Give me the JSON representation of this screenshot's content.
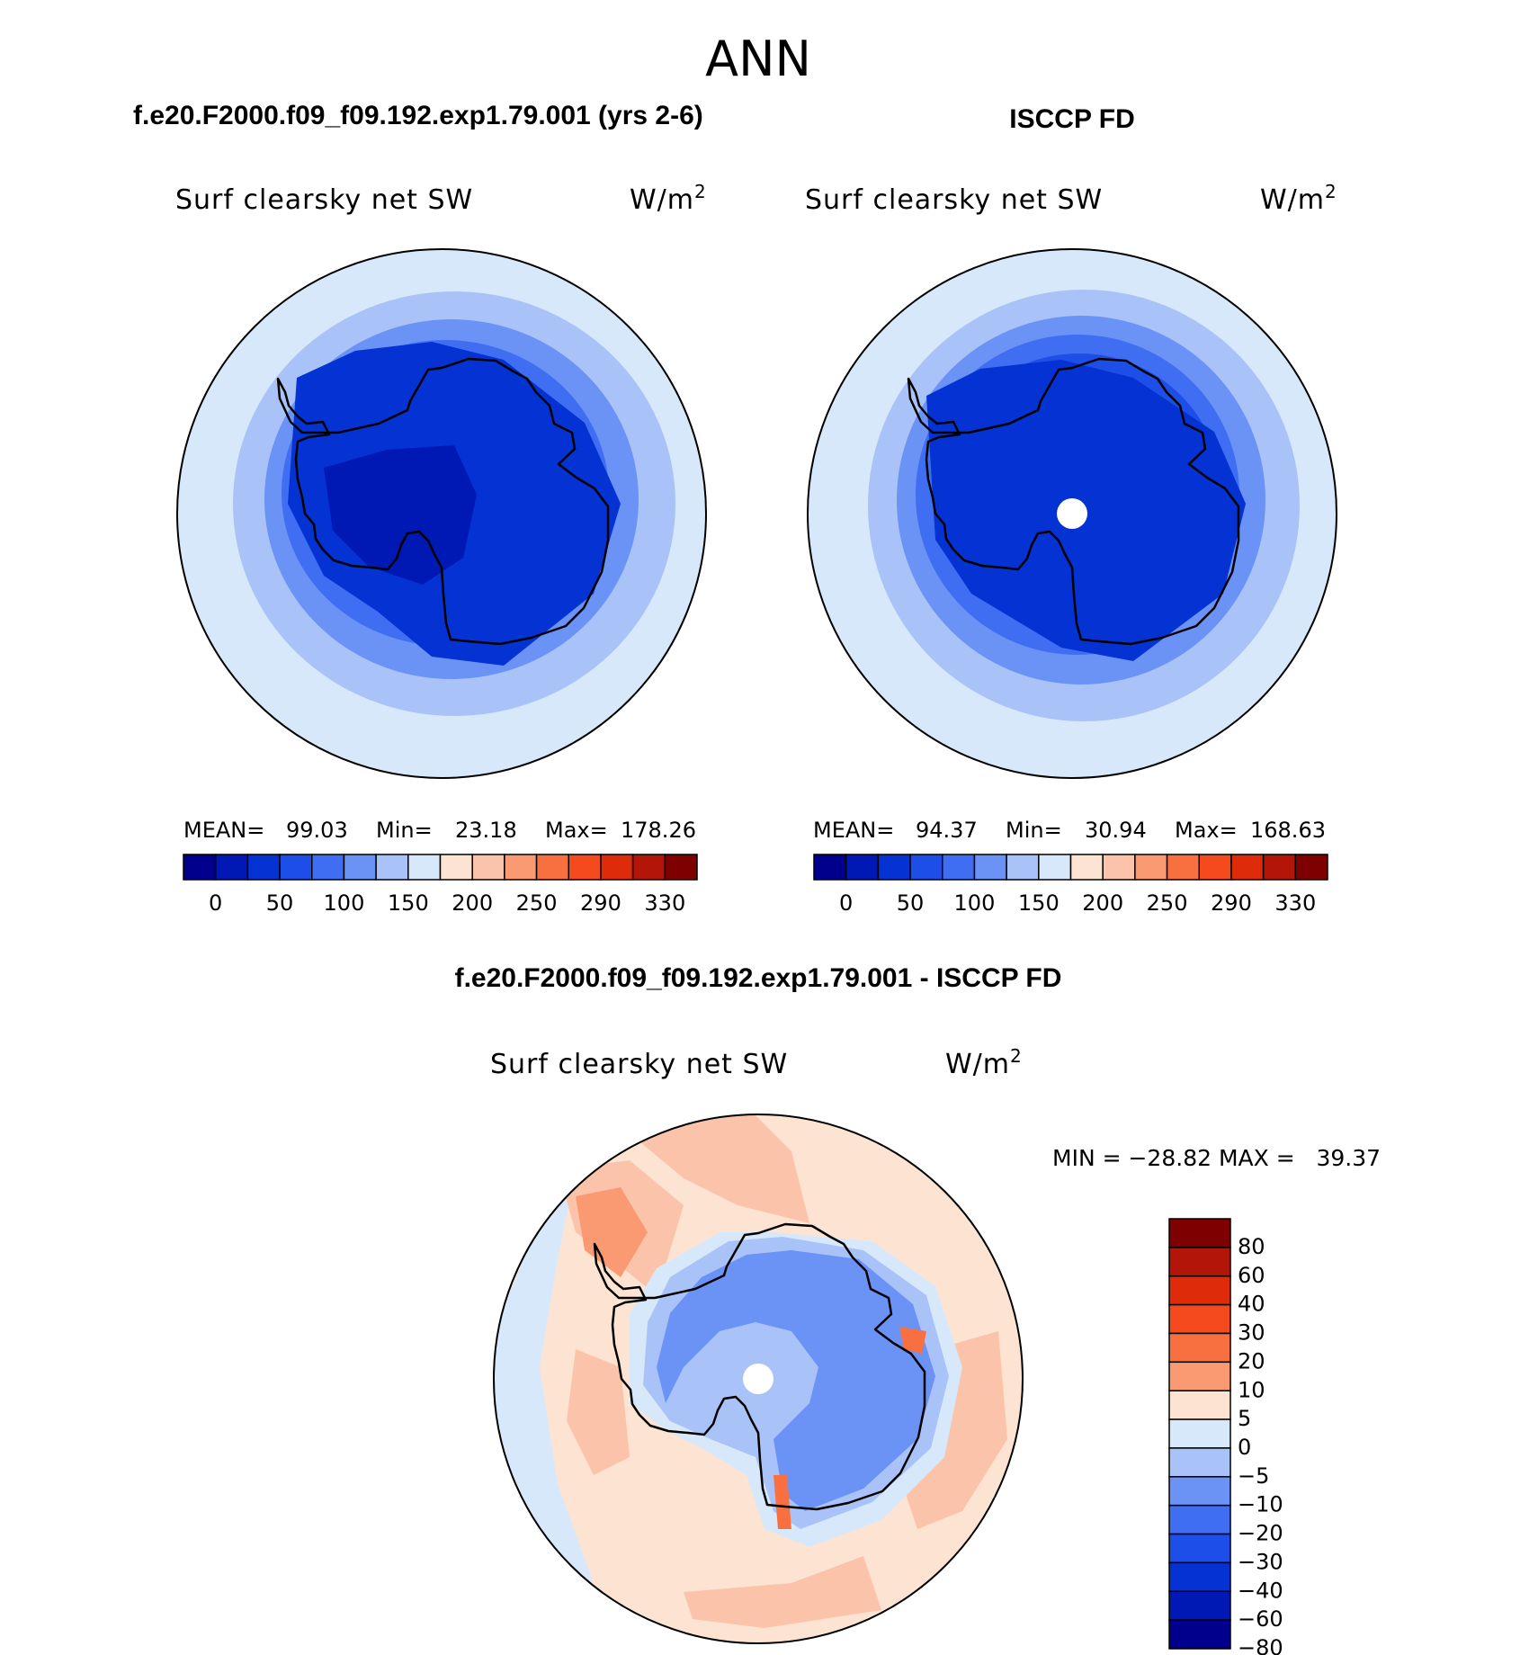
{
  "page_title": "ANN",
  "panels": [
    {
      "heading": "f.e20.F2000.f09_f09.192.exp1.79.001 (yrs 2-6)",
      "variable": "Surf clearsky net SW",
      "units_base": "W/m",
      "units_exp": "2",
      "stats": {
        "mean_label": "MEAN=",
        "mean": "99.03",
        "min_label": "Min=",
        "min": "23.18",
        "max_label": "Max=",
        "max": "178.26"
      }
    },
    {
      "heading": "ISCCP FD",
      "variable": "Surf clearsky net SW",
      "units_base": "W/m",
      "units_exp": "2",
      "stats": {
        "mean_label": "MEAN=",
        "mean": "94.37",
        "min_label": "Min=",
        "min": "30.94",
        "max_label": "Max=",
        "max": "168.63"
      }
    }
  ],
  "diff_panel": {
    "heading": "f.e20.F2000.f09_f09.192.exp1.79.001 - ISCCP FD",
    "variable": "Surf clearsky net SW",
    "units_base": "W/m",
    "units_exp": "2",
    "stats_text": "MIN = −28.82 MAX =   39.37"
  },
  "colorbar_abs": {
    "colors": [
      "#00008c",
      "#0018b4",
      "#0532d2",
      "#1d4fe8",
      "#3f6ef2",
      "#6b92f5",
      "#a9c3f8",
      "#d8e8fb",
      "#fde4d2",
      "#fbc3aa",
      "#f99a72",
      "#f8703f",
      "#f44a1d",
      "#de2c0b",
      "#b31608",
      "#7f0000"
    ],
    "tick_labels": [
      "0",
      "50",
      "100",
      "150",
      "200",
      "250",
      "290",
      "330"
    ]
  },
  "colorbar_diff": {
    "colors": [
      "#7f0000",
      "#b31608",
      "#de2c0b",
      "#f44a1d",
      "#f8703f",
      "#f99a72",
      "#fde4d2",
      "#d8e8fb",
      "#a9c3f8",
      "#6b92f5",
      "#3f6ef2",
      "#1d4fe8",
      "#0532d2",
      "#0018b4",
      "#00008c"
    ],
    "tick_labels": [
      "80",
      "60",
      "40",
      "30",
      "20",
      "10",
      "5",
      "0",
      "−5",
      "−10",
      "−20",
      "−30",
      "−40",
      "−60",
      "−80"
    ]
  }
}
